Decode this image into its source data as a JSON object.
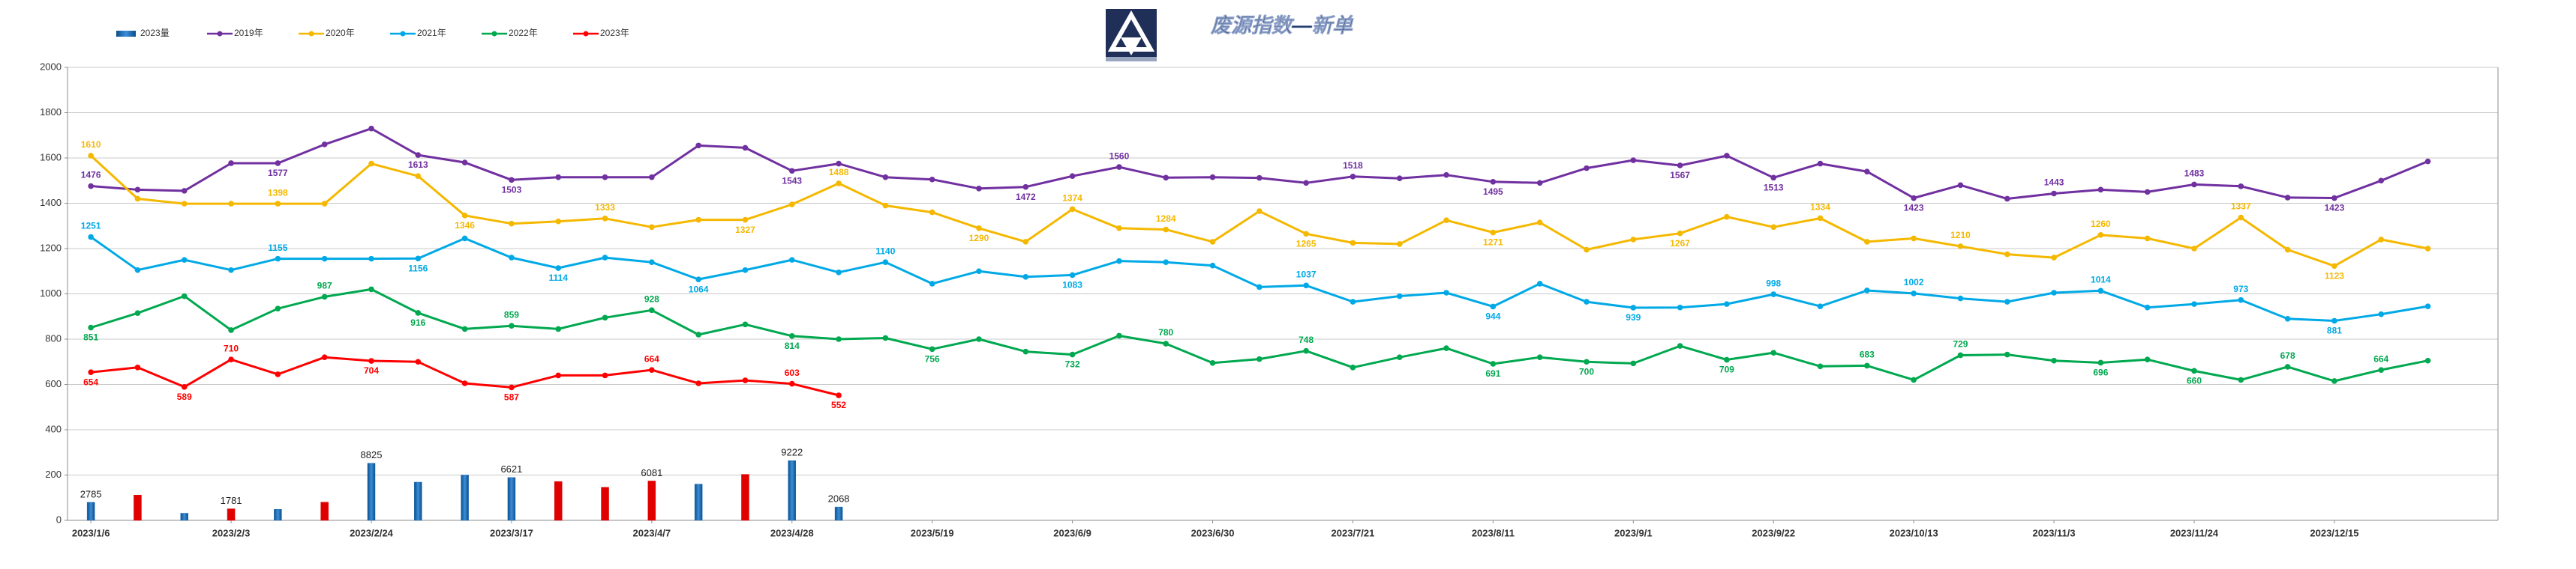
{
  "chart_data": {
    "type": "line",
    "title": "废源指数—新单",
    "legend": "top-left",
    "grid": true,
    "ylim": [
      0,
      2000
    ],
    "yticks": [
      0,
      200,
      400,
      600,
      800,
      1000,
      1200,
      1400,
      1600,
      1800,
      2000
    ],
    "y2lim": [
      0,
      70000
    ],
    "categories": [
      "2023/1/6",
      null,
      null,
      "2023/2/3",
      null,
      null,
      "2023/2/24",
      null,
      null,
      "2023/3/17",
      null,
      null,
      "2023/4/7",
      null,
      null,
      "2023/4/28",
      null,
      null,
      "2023/5/19",
      null,
      null,
      "2023/6/9",
      null,
      null,
      "2023/6/30",
      null,
      null,
      "2023/7/21",
      null,
      null,
      "2023/8/11",
      null,
      null,
      "2023/9/1",
      null,
      null,
      "2023/9/22",
      null,
      null,
      "2023/10/13",
      null,
      null,
      "2023/11/3",
      null,
      null,
      "2023/11/24",
      null,
      null,
      "2023/12/15",
      null,
      null
    ],
    "series": [
      {
        "name": "2023量",
        "type": "bar",
        "axis": "y2",
        "color": "#1f6fb5",
        "values": [
          2785,
          3900,
          1100,
          1781,
          1700,
          2800,
          8825,
          5900,
          7000,
          6621,
          6000,
          5100,
          6081,
          5600,
          7100,
          9222,
          2068,
          null,
          null,
          null,
          null,
          null,
          null,
          null,
          null,
          null,
          null,
          null,
          null,
          null,
          null,
          null,
          null,
          null,
          null,
          null,
          null,
          null,
          null,
          null,
          null,
          null,
          null,
          null,
          null,
          null,
          null,
          null,
          null,
          null,
          null
        ],
        "colors": [
          "#1f6fb5",
          "#e00000",
          "#1f6fb5",
          "#e00000",
          "#1f6fb5",
          "#e00000",
          "#1f6fb5",
          "#1f6fb5",
          "#1f6fb5",
          "#1f6fb5",
          "#e00000",
          "#e00000",
          "#e00000",
          "#1f6fb5",
          "#e00000",
          "#1f6fb5",
          "#1f6fb5",
          null,
          null,
          null,
          null,
          null,
          null,
          null,
          null,
          null,
          null,
          null,
          null,
          null,
          null,
          null,
          null,
          null,
          null,
          null,
          null,
          null,
          null,
          null,
          null,
          null,
          null,
          null,
          null,
          null,
          null,
          null,
          null,
          null,
          null
        ],
        "value_labels": [
          "2785",
          null,
          null,
          "1781",
          null,
          null,
          "8825",
          null,
          null,
          "6621",
          null,
          null,
          "6081",
          null,
          null,
          "9222",
          "2068",
          null,
          null,
          null,
          null,
          null,
          null,
          null,
          null,
          null,
          null,
          null,
          null,
          null,
          null,
          null,
          null,
          null,
          null,
          null,
          null,
          null,
          null,
          null,
          null,
          null,
          null,
          null,
          null,
          null,
          null,
          null,
          null,
          null,
          null
        ]
      },
      {
        "name": "2019年",
        "type": "line",
        "color": "#7030a0",
        "values": [
          1476,
          1460,
          1455,
          1577,
          1577,
          1660,
          1730,
          1613,
          1580,
          1503,
          1515,
          1515,
          1515,
          1655,
          1645,
          1543,
          1575,
          1515,
          1505,
          1465,
          1472,
          1520,
          1560,
          1513,
          1515,
          1512,
          1490,
          1518,
          1510,
          1525,
          1495,
          1490,
          1555,
          1590,
          1567,
          1610,
          1513,
          1575,
          1540,
          1423,
          1480,
          1420,
          1443,
          1460,
          1450,
          1483,
          1475,
          1425,
          1423,
          1500,
          1585
        ],
        "value_labels": [
          "1476",
          null,
          null,
          null,
          "1577",
          null,
          null,
          "1613",
          null,
          "1503",
          null,
          null,
          null,
          null,
          null,
          "1543",
          null,
          null,
          null,
          null,
          "1472",
          null,
          "1560",
          null,
          null,
          null,
          null,
          "1518",
          null,
          null,
          "1495",
          null,
          null,
          null,
          "1567",
          null,
          "1513",
          null,
          null,
          "1423",
          null,
          null,
          "1443",
          null,
          null,
          "1483",
          null,
          null,
          "1423",
          null,
          null
        ]
      },
      {
        "name": "2020年",
        "type": "line",
        "color": "#f5b800",
        "values": [
          1610,
          1420,
          1398,
          1398,
          1398,
          1398,
          1575,
          1520,
          1346,
          1310,
          1320,
          1333,
          1295,
          1327,
          1327,
          1395,
          1488,
          1390,
          1360,
          1290,
          1230,
          1374,
          1290,
          1284,
          1230,
          1365,
          1265,
          1225,
          1220,
          1325,
          1271,
          1315,
          1195,
          1240,
          1267,
          1340,
          1295,
          1334,
          1230,
          1245,
          1210,
          1175,
          1160,
          1260,
          1245,
          1200,
          1337,
          1195,
          1123,
          1240,
          1200
        ],
        "value_labels": [
          "1610",
          null,
          null,
          null,
          "1398",
          null,
          null,
          null,
          "1346",
          null,
          null,
          "1333",
          null,
          null,
          "1327",
          null,
          "1488",
          null,
          null,
          "1290",
          null,
          "1374",
          null,
          "1284",
          null,
          null,
          "1265",
          null,
          null,
          null,
          "1271",
          null,
          null,
          null,
          "1267",
          null,
          null,
          "1334",
          null,
          null,
          "1210",
          null,
          null,
          "1260",
          null,
          null,
          "1337",
          null,
          "1123",
          null,
          null
        ]
      },
      {
        "name": "2021年",
        "type": "line",
        "color": "#00a9e6",
        "values": [
          1251,
          1105,
          1150,
          1105,
          1155,
          1155,
          1155,
          1156,
          1245,
          1160,
          1114,
          1160,
          1140,
          1064,
          1105,
          1150,
          1095,
          1140,
          1045,
          1100,
          1075,
          1083,
          1145,
          1140,
          1125,
          1030,
          1037,
          965,
          990,
          1005,
          944,
          1045,
          965,
          939,
          940,
          955,
          998,
          945,
          1015,
          1002,
          980,
          965,
          1005,
          1014,
          940,
          955,
          973,
          890,
          881,
          910,
          945
        ],
        "value_labels": [
          "1251",
          null,
          null,
          null,
          "1155",
          null,
          null,
          "1156",
          null,
          null,
          "1114",
          null,
          null,
          "1064",
          null,
          null,
          null,
          "1140",
          null,
          null,
          null,
          "1083",
          null,
          null,
          null,
          null,
          "1037",
          null,
          null,
          null,
          "944",
          null,
          null,
          "939",
          null,
          null,
          "998",
          null,
          null,
          "1002",
          null,
          null,
          null,
          "1014",
          null,
          null,
          "973",
          null,
          "881",
          null,
          null
        ]
      },
      {
        "name": "2022年",
        "type": "line",
        "color": "#00a84f",
        "values": [
          851,
          915,
          990,
          840,
          935,
          987,
          1020,
          916,
          845,
          859,
          845,
          895,
          928,
          820,
          865,
          814,
          800,
          805,
          756,
          800,
          745,
          732,
          815,
          780,
          695,
          712,
          748,
          675,
          720,
          760,
          691,
          720,
          700,
          693,
          770,
          709,
          740,
          680,
          683,
          620,
          729,
          732,
          705,
          696,
          710,
          660,
          620,
          678,
          615,
          664,
          705
        ],
        "value_labels": [
          "851",
          null,
          null,
          null,
          null,
          "987",
          null,
          "916",
          null,
          "859",
          null,
          null,
          "928",
          null,
          null,
          "814",
          null,
          null,
          "756",
          null,
          null,
          "732",
          null,
          "780",
          null,
          null,
          "748",
          null,
          null,
          null,
          "691",
          null,
          "700",
          null,
          null,
          "709",
          null,
          null,
          "683",
          null,
          "729",
          null,
          null,
          "696",
          null,
          "660",
          null,
          "678",
          null,
          "664",
          null
        ]
      },
      {
        "name": "2023年",
        "type": "line",
        "color": "#ff0000",
        "values": [
          654,
          675,
          589,
          710,
          645,
          720,
          704,
          700,
          605,
          587,
          640,
          640,
          664,
          605,
          618,
          603,
          552,
          null,
          null,
          null,
          null,
          null,
          null,
          null,
          null,
          null,
          null,
          null,
          null,
          null,
          null,
          null,
          null,
          null,
          null,
          null,
          null,
          null,
          null,
          null,
          null,
          null,
          null,
          null,
          null,
          null,
          null,
          null,
          null,
          null,
          null
        ],
        "value_labels": [
          "654",
          null,
          "589",
          "710",
          null,
          null,
          "704",
          null,
          null,
          "587",
          null,
          null,
          "664",
          null,
          null,
          "603",
          "552",
          null,
          null,
          null,
          null,
          null,
          null,
          null,
          null,
          null,
          null,
          null,
          null,
          null,
          null,
          null,
          null,
          null,
          null,
          null,
          null,
          null,
          null,
          null,
          null,
          null,
          null,
          null,
          null,
          null,
          null,
          null,
          null,
          null,
          null
        ]
      }
    ]
  }
}
